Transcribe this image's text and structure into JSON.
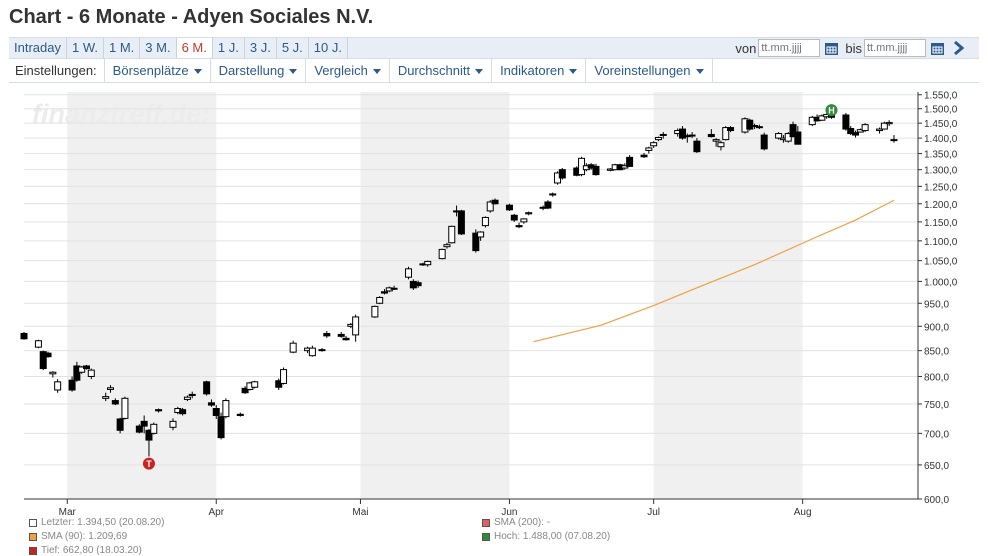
{
  "page": {
    "title": "Chart - 6 Monate - Adyen Sociales N.V."
  },
  "periods": [
    {
      "label": "Intraday",
      "active": false
    },
    {
      "label": "1 W.",
      "active": false
    },
    {
      "label": "1 M.",
      "active": false
    },
    {
      "label": "3 M.",
      "active": false
    },
    {
      "label": "6 M.",
      "active": true
    },
    {
      "label": "1 J.",
      "active": false
    },
    {
      "label": "3 J.",
      "active": false
    },
    {
      "label": "5 J.",
      "active": false
    },
    {
      "label": "10 J.",
      "active": false
    }
  ],
  "range": {
    "from_label": "von",
    "to_label": "bis",
    "from_placeholder": "tt.mm.jjjj",
    "to_placeholder": "tt.mm.jjjj"
  },
  "settings": {
    "label": "Einstellungen:",
    "menus": [
      "Börsenplätze",
      "Darstellung",
      "Vergleich",
      "Durchschnitt",
      "Indikatoren",
      "Voreinstellungen"
    ]
  },
  "watermark": "finanztreff.de:",
  "legend": {
    "last": "Letzter: 1.394,50 (20.08.20)",
    "sma90": "SMA (90): 1.209,69",
    "low": "Tief: 662,80 (18.03.20)",
    "sma200": "SMA (200): -",
    "high": "Hoch: 1.488,00 (07.08.20)"
  },
  "colors": {
    "accent": "#2b5a8c",
    "active_period": "#c0392b",
    "sma90": "#f0a040",
    "high_marker": "#2e8b3a",
    "low_marker": "#cc2222",
    "shade": "#f0f0f0"
  },
  "chart_data": {
    "type": "candlestick",
    "y_tick_labels": [
      "600,0",
      "650,0",
      "700,0",
      "750,0",
      "800,0",
      "850,0",
      "900,0",
      "950,0",
      "1.000,0",
      "1.050,0",
      "1.100,0",
      "1.150,0",
      "1.200,0",
      "1.250,0",
      "1.300,0",
      "1.350,0",
      "1.400,0",
      "1.450,0",
      "1.500,0",
      "1.550,0"
    ],
    "y_ticks": [
      600,
      650,
      700,
      750,
      800,
      850,
      900,
      950,
      1000,
      1050,
      1100,
      1150,
      1200,
      1250,
      1300,
      1350,
      1400,
      1450,
      1500,
      1550
    ],
    "ylim": [
      600,
      1560
    ],
    "y_scale": "log",
    "x_tick_labels": [
      "Mar",
      "Apr",
      "Mai",
      "Jun",
      "Jul",
      "Aug"
    ],
    "x_tick_dates": [
      "2020-03-01",
      "2020-04-01",
      "2020-05-01",
      "2020-06-01",
      "2020-07-01",
      "2020-08-01"
    ],
    "xlim": [
      "2020-02-21",
      "2020-08-25"
    ],
    "shaded_months": [
      [
        "2020-03-01",
        "2020-04-01"
      ],
      [
        "2020-05-01",
        "2020-06-01"
      ],
      [
        "2020-07-01",
        "2020-08-01"
      ]
    ],
    "candles": [
      {
        "d": "2020-02-21",
        "o": 885,
        "h": 888,
        "l": 872,
        "c": 874
      },
      {
        "d": "2020-02-24",
        "o": 857,
        "h": 872,
        "l": 855,
        "c": 870
      },
      {
        "d": "2020-02-25",
        "o": 848,
        "h": 850,
        "l": 812,
        "c": 815
      },
      {
        "d": "2020-02-26",
        "o": 845,
        "h": 848,
        "l": 836,
        "c": 838
      },
      {
        "d": "2020-02-27",
        "o": 805,
        "h": 810,
        "l": 798,
        "c": 808
      },
      {
        "d": "2020-02-28",
        "o": 775,
        "h": 795,
        "l": 770,
        "c": 790
      },
      {
        "d": "2020-03-02",
        "o": 793,
        "h": 800,
        "l": 772,
        "c": 775
      },
      {
        "d": "2020-03-03",
        "o": 820,
        "h": 828,
        "l": 790,
        "c": 793
      },
      {
        "d": "2020-03-04",
        "o": 808,
        "h": 820,
        "l": 805,
        "c": 818
      },
      {
        "d": "2020-03-05",
        "o": 820,
        "h": 822,
        "l": 813,
        "c": 815
      },
      {
        "d": "2020-03-06",
        "o": 800,
        "h": 815,
        "l": 795,
        "c": 812
      },
      {
        "d": "2020-03-09",
        "o": 760,
        "h": 770,
        "l": 755,
        "c": 763
      },
      {
        "d": "2020-03-10",
        "o": 776,
        "h": 784,
        "l": 770,
        "c": 779
      },
      {
        "d": "2020-03-11",
        "o": 756,
        "h": 760,
        "l": 748,
        "c": 750
      },
      {
        "d": "2020-03-12",
        "o": 724,
        "h": 726,
        "l": 700,
        "c": 705
      },
      {
        "d": "2020-03-13",
        "o": 725,
        "h": 763,
        "l": 723,
        "c": 760
      },
      {
        "d": "2020-03-16",
        "o": 712,
        "h": 715,
        "l": 700,
        "c": 702
      },
      {
        "d": "2020-03-17",
        "o": 720,
        "h": 730,
        "l": 700,
        "c": 712
      },
      {
        "d": "2020-03-18",
        "o": 705,
        "h": 707,
        "l": 663,
        "c": 689
      },
      {
        "d": "2020-03-19",
        "o": 700,
        "h": 718,
        "l": 698,
        "c": 715
      },
      {
        "d": "2020-03-20",
        "o": 740,
        "h": 742,
        "l": 735,
        "c": 738
      },
      {
        "d": "2020-03-23",
        "o": 710,
        "h": 725,
        "l": 705,
        "c": 720
      },
      {
        "d": "2020-03-24",
        "o": 735,
        "h": 745,
        "l": 732,
        "c": 742
      },
      {
        "d": "2020-03-25",
        "o": 740,
        "h": 743,
        "l": 730,
        "c": 733
      },
      {
        "d": "2020-03-26",
        "o": 758,
        "h": 765,
        "l": 755,
        "c": 762
      },
      {
        "d": "2020-03-27",
        "o": 767,
        "h": 772,
        "l": 760,
        "c": 765
      },
      {
        "d": "2020-03-30",
        "o": 790,
        "h": 792,
        "l": 765,
        "c": 768
      },
      {
        "d": "2020-03-31",
        "o": 752,
        "h": 758,
        "l": 745,
        "c": 748
      },
      {
        "d": "2020-04-01",
        "o": 742,
        "h": 748,
        "l": 724,
        "c": 730
      },
      {
        "d": "2020-04-02",
        "o": 728,
        "h": 735,
        "l": 690,
        "c": 693
      },
      {
        "d": "2020-04-03",
        "o": 728,
        "h": 760,
        "l": 725,
        "c": 756
      },
      {
        "d": "2020-04-06",
        "o": 732,
        "h": 735,
        "l": 728,
        "c": 730
      },
      {
        "d": "2020-04-07",
        "o": 778,
        "h": 782,
        "l": 768,
        "c": 770
      },
      {
        "d": "2020-04-08",
        "o": 776,
        "h": 790,
        "l": 774,
        "c": 788
      },
      {
        "d": "2020-04-09",
        "o": 780,
        "h": 792,
        "l": 778,
        "c": 790
      },
      {
        "d": "2020-04-14",
        "o": 792,
        "h": 796,
        "l": 775,
        "c": 780
      },
      {
        "d": "2020-04-15",
        "o": 787,
        "h": 817,
        "l": 785,
        "c": 813
      },
      {
        "d": "2020-04-17",
        "o": 847,
        "h": 870,
        "l": 845,
        "c": 865
      },
      {
        "d": "2020-04-20",
        "o": 850,
        "h": 858,
        "l": 845,
        "c": 855
      },
      {
        "d": "2020-04-21",
        "o": 840,
        "h": 860,
        "l": 838,
        "c": 855
      },
      {
        "d": "2020-04-23",
        "o": 850,
        "h": 855,
        "l": 848,
        "c": 852
      },
      {
        "d": "2020-04-24",
        "o": 885,
        "h": 890,
        "l": 876,
        "c": 880
      },
      {
        "d": "2020-04-27",
        "o": 883,
        "h": 888,
        "l": 876,
        "c": 879
      },
      {
        "d": "2020-04-28",
        "o": 875,
        "h": 880,
        "l": 870,
        "c": 872
      },
      {
        "d": "2020-04-29",
        "o": 900,
        "h": 907,
        "l": 896,
        "c": 904
      },
      {
        "d": "2020-04-30",
        "o": 882,
        "h": 925,
        "l": 868,
        "c": 920
      },
      {
        "d": "2020-05-04",
        "o": 920,
        "h": 945,
        "l": 918,
        "c": 943
      },
      {
        "d": "2020-05-05",
        "o": 950,
        "h": 966,
        "l": 948,
        "c": 963
      },
      {
        "d": "2020-05-06",
        "o": 976,
        "h": 982,
        "l": 970,
        "c": 973
      },
      {
        "d": "2020-05-07",
        "o": 978,
        "h": 988,
        "l": 975,
        "c": 985
      },
      {
        "d": "2020-05-08",
        "o": 984,
        "h": 990,
        "l": 980,
        "c": 983
      },
      {
        "d": "2020-05-11",
        "o": 1010,
        "h": 1035,
        "l": 1005,
        "c": 1030
      },
      {
        "d": "2020-05-12",
        "o": 1000,
        "h": 1005,
        "l": 980,
        "c": 985
      },
      {
        "d": "2020-05-13",
        "o": 997,
        "h": 1002,
        "l": 985,
        "c": 990
      },
      {
        "d": "2020-05-14",
        "o": 1040,
        "h": 1045,
        "l": 1037,
        "c": 1042
      },
      {
        "d": "2020-05-15",
        "o": 1040,
        "h": 1050,
        "l": 1035,
        "c": 1048
      },
      {
        "d": "2020-05-18",
        "o": 1055,
        "h": 1080,
        "l": 1053,
        "c": 1078
      },
      {
        "d": "2020-05-19",
        "o": 1085,
        "h": 1095,
        "l": 1080,
        "c": 1090
      },
      {
        "d": "2020-05-20",
        "o": 1095,
        "h": 1140,
        "l": 1093,
        "c": 1138
      },
      {
        "d": "2020-05-21",
        "o": 1180,
        "h": 1195,
        "l": 1165,
        "c": 1180
      },
      {
        "d": "2020-05-22",
        "o": 1180,
        "h": 1183,
        "l": 1115,
        "c": 1118
      },
      {
        "d": "2020-05-25",
        "o": 1120,
        "h": 1130,
        "l": 1070,
        "c": 1075
      },
      {
        "d": "2020-05-26",
        "o": 1110,
        "h": 1125,
        "l": 1100,
        "c": 1123
      },
      {
        "d": "2020-05-27",
        "o": 1140,
        "h": 1165,
        "l": 1135,
        "c": 1162
      },
      {
        "d": "2020-05-28",
        "o": 1180,
        "h": 1210,
        "l": 1175,
        "c": 1205
      },
      {
        "d": "2020-05-29",
        "o": 1210,
        "h": 1215,
        "l": 1198,
        "c": 1200
      },
      {
        "d": "2020-06-01",
        "o": 1196,
        "h": 1200,
        "l": 1180,
        "c": 1183
      },
      {
        "d": "2020-06-02",
        "o": 1168,
        "h": 1172,
        "l": 1150,
        "c": 1155
      },
      {
        "d": "2020-06-03",
        "o": 1140,
        "h": 1148,
        "l": 1133,
        "c": 1137
      },
      {
        "d": "2020-06-04",
        "o": 1150,
        "h": 1160,
        "l": 1145,
        "c": 1158
      },
      {
        "d": "2020-06-05",
        "o": 1172,
        "h": 1178,
        "l": 1168,
        "c": 1175
      },
      {
        "d": "2020-06-08",
        "o": 1188,
        "h": 1195,
        "l": 1182,
        "c": 1190
      },
      {
        "d": "2020-06-09",
        "o": 1205,
        "h": 1210,
        "l": 1185,
        "c": 1188
      },
      {
        "d": "2020-06-10",
        "o": 1225,
        "h": 1232,
        "l": 1220,
        "c": 1228
      },
      {
        "d": "2020-06-11",
        "o": 1260,
        "h": 1295,
        "l": 1255,
        "c": 1290
      },
      {
        "d": "2020-06-12",
        "o": 1300,
        "h": 1305,
        "l": 1270,
        "c": 1275
      },
      {
        "d": "2020-06-15",
        "o": 1305,
        "h": 1310,
        "l": 1280,
        "c": 1283
      },
      {
        "d": "2020-06-16",
        "o": 1285,
        "h": 1340,
        "l": 1280,
        "c": 1335
      },
      {
        "d": "2020-06-17",
        "o": 1300,
        "h": 1320,
        "l": 1295,
        "c": 1312
      },
      {
        "d": "2020-06-18",
        "o": 1315,
        "h": 1320,
        "l": 1300,
        "c": 1305
      },
      {
        "d": "2020-06-19",
        "o": 1310,
        "h": 1318,
        "l": 1282,
        "c": 1285
      },
      {
        "d": "2020-06-22",
        "o": 1298,
        "h": 1305,
        "l": 1295,
        "c": 1302
      },
      {
        "d": "2020-06-23",
        "o": 1300,
        "h": 1318,
        "l": 1298,
        "c": 1315
      },
      {
        "d": "2020-06-24",
        "o": 1315,
        "h": 1318,
        "l": 1298,
        "c": 1300
      },
      {
        "d": "2020-06-25",
        "o": 1305,
        "h": 1320,
        "l": 1300,
        "c": 1312
      },
      {
        "d": "2020-06-26",
        "o": 1338,
        "h": 1345,
        "l": 1308,
        "c": 1310
      },
      {
        "d": "2020-06-29",
        "o": 1345,
        "h": 1352,
        "l": 1336,
        "c": 1340
      },
      {
        "d": "2020-06-30",
        "o": 1360,
        "h": 1372,
        "l": 1350,
        "c": 1368
      },
      {
        "d": "2020-07-01",
        "o": 1375,
        "h": 1390,
        "l": 1368,
        "c": 1385
      },
      {
        "d": "2020-07-02",
        "o": 1395,
        "h": 1405,
        "l": 1390,
        "c": 1402
      },
      {
        "d": "2020-07-03",
        "o": 1410,
        "h": 1420,
        "l": 1398,
        "c": 1412
      },
      {
        "d": "2020-07-06",
        "o": 1415,
        "h": 1432,
        "l": 1405,
        "c": 1425
      },
      {
        "d": "2020-07-07",
        "o": 1430,
        "h": 1440,
        "l": 1395,
        "c": 1400
      },
      {
        "d": "2020-07-08",
        "o": 1405,
        "h": 1415,
        "l": 1385,
        "c": 1408
      },
      {
        "d": "2020-07-09",
        "o": 1408,
        "h": 1420,
        "l": 1400,
        "c": 1410
      },
      {
        "d": "2020-07-10",
        "o": 1390,
        "h": 1400,
        "l": 1352,
        "c": 1356
      },
      {
        "d": "2020-07-13",
        "o": 1412,
        "h": 1430,
        "l": 1402,
        "c": 1405
      },
      {
        "d": "2020-07-14",
        "o": 1390,
        "h": 1400,
        "l": 1372,
        "c": 1395
      },
      {
        "d": "2020-07-15",
        "o": 1372,
        "h": 1392,
        "l": 1360,
        "c": 1385
      },
      {
        "d": "2020-07-16",
        "o": 1395,
        "h": 1440,
        "l": 1392,
        "c": 1435
      },
      {
        "d": "2020-07-17",
        "o": 1435,
        "h": 1440,
        "l": 1420,
        "c": 1425
      },
      {
        "d": "2020-07-20",
        "o": 1420,
        "h": 1470,
        "l": 1415,
        "c": 1465
      },
      {
        "d": "2020-07-21",
        "o": 1460,
        "h": 1465,
        "l": 1425,
        "c": 1430
      },
      {
        "d": "2020-07-22",
        "o": 1440,
        "h": 1448,
        "l": 1430,
        "c": 1442
      },
      {
        "d": "2020-07-23",
        "o": 1435,
        "h": 1445,
        "l": 1430,
        "c": 1438
      },
      {
        "d": "2020-07-24",
        "o": 1410,
        "h": 1418,
        "l": 1360,
        "c": 1365
      },
      {
        "d": "2020-07-27",
        "o": 1400,
        "h": 1420,
        "l": 1395,
        "c": 1415
      },
      {
        "d": "2020-07-28",
        "o": 1395,
        "h": 1410,
        "l": 1385,
        "c": 1400
      },
      {
        "d": "2020-07-29",
        "o": 1390,
        "h": 1420,
        "l": 1385,
        "c": 1415
      },
      {
        "d": "2020-07-30",
        "o": 1445,
        "h": 1455,
        "l": 1402,
        "c": 1405
      },
      {
        "d": "2020-07-31",
        "o": 1420,
        "h": 1440,
        "l": 1380,
        "c": 1380
      },
      {
        "d": "2020-08-03",
        "o": 1445,
        "h": 1475,
        "l": 1440,
        "c": 1470
      },
      {
        "d": "2020-08-04",
        "o": 1470,
        "h": 1480,
        "l": 1455,
        "c": 1458
      },
      {
        "d": "2020-08-05",
        "o": 1460,
        "h": 1480,
        "l": 1458,
        "c": 1475
      },
      {
        "d": "2020-08-06",
        "o": 1472,
        "h": 1485,
        "l": 1465,
        "c": 1480
      },
      {
        "d": "2020-08-07",
        "o": 1485,
        "h": 1488,
        "l": 1465,
        "c": 1470
      },
      {
        "d": "2020-08-10",
        "o": 1478,
        "h": 1485,
        "l": 1425,
        "c": 1430
      },
      {
        "d": "2020-08-11",
        "o": 1432,
        "h": 1440,
        "l": 1410,
        "c": 1415
      },
      {
        "d": "2020-08-12",
        "o": 1418,
        "h": 1425,
        "l": 1402,
        "c": 1410
      },
      {
        "d": "2020-08-13",
        "o": 1420,
        "h": 1432,
        "l": 1418,
        "c": 1428
      },
      {
        "d": "2020-08-14",
        "o": 1425,
        "h": 1450,
        "l": 1420,
        "c": 1445
      },
      {
        "d": "2020-08-17",
        "o": 1425,
        "h": 1435,
        "l": 1415,
        "c": 1430
      },
      {
        "d": "2020-08-18",
        "o": 1430,
        "h": 1455,
        "l": 1428,
        "c": 1450
      },
      {
        "d": "2020-08-19",
        "o": 1448,
        "h": 1460,
        "l": 1440,
        "c": 1452
      },
      {
        "d": "2020-08-20",
        "o": 1395,
        "h": 1410,
        "l": 1385,
        "c": 1394.5
      }
    ],
    "sma90": [
      {
        "d": "2020-06-06",
        "v": 868
      },
      {
        "d": "2020-06-20",
        "v": 902
      },
      {
        "d": "2020-07-01",
        "v": 945
      },
      {
        "d": "2020-07-10",
        "v": 985
      },
      {
        "d": "2020-07-22",
        "v": 1040
      },
      {
        "d": "2020-08-03",
        "v": 1105
      },
      {
        "d": "2020-08-12",
        "v": 1155
      },
      {
        "d": "2020-08-20",
        "v": 1209.69
      }
    ],
    "markers": [
      {
        "type": "low",
        "label": "T",
        "d": "2020-03-18",
        "v": 662.8
      },
      {
        "type": "high",
        "label": "H",
        "d": "2020-08-07",
        "v": 1488
      }
    ]
  }
}
